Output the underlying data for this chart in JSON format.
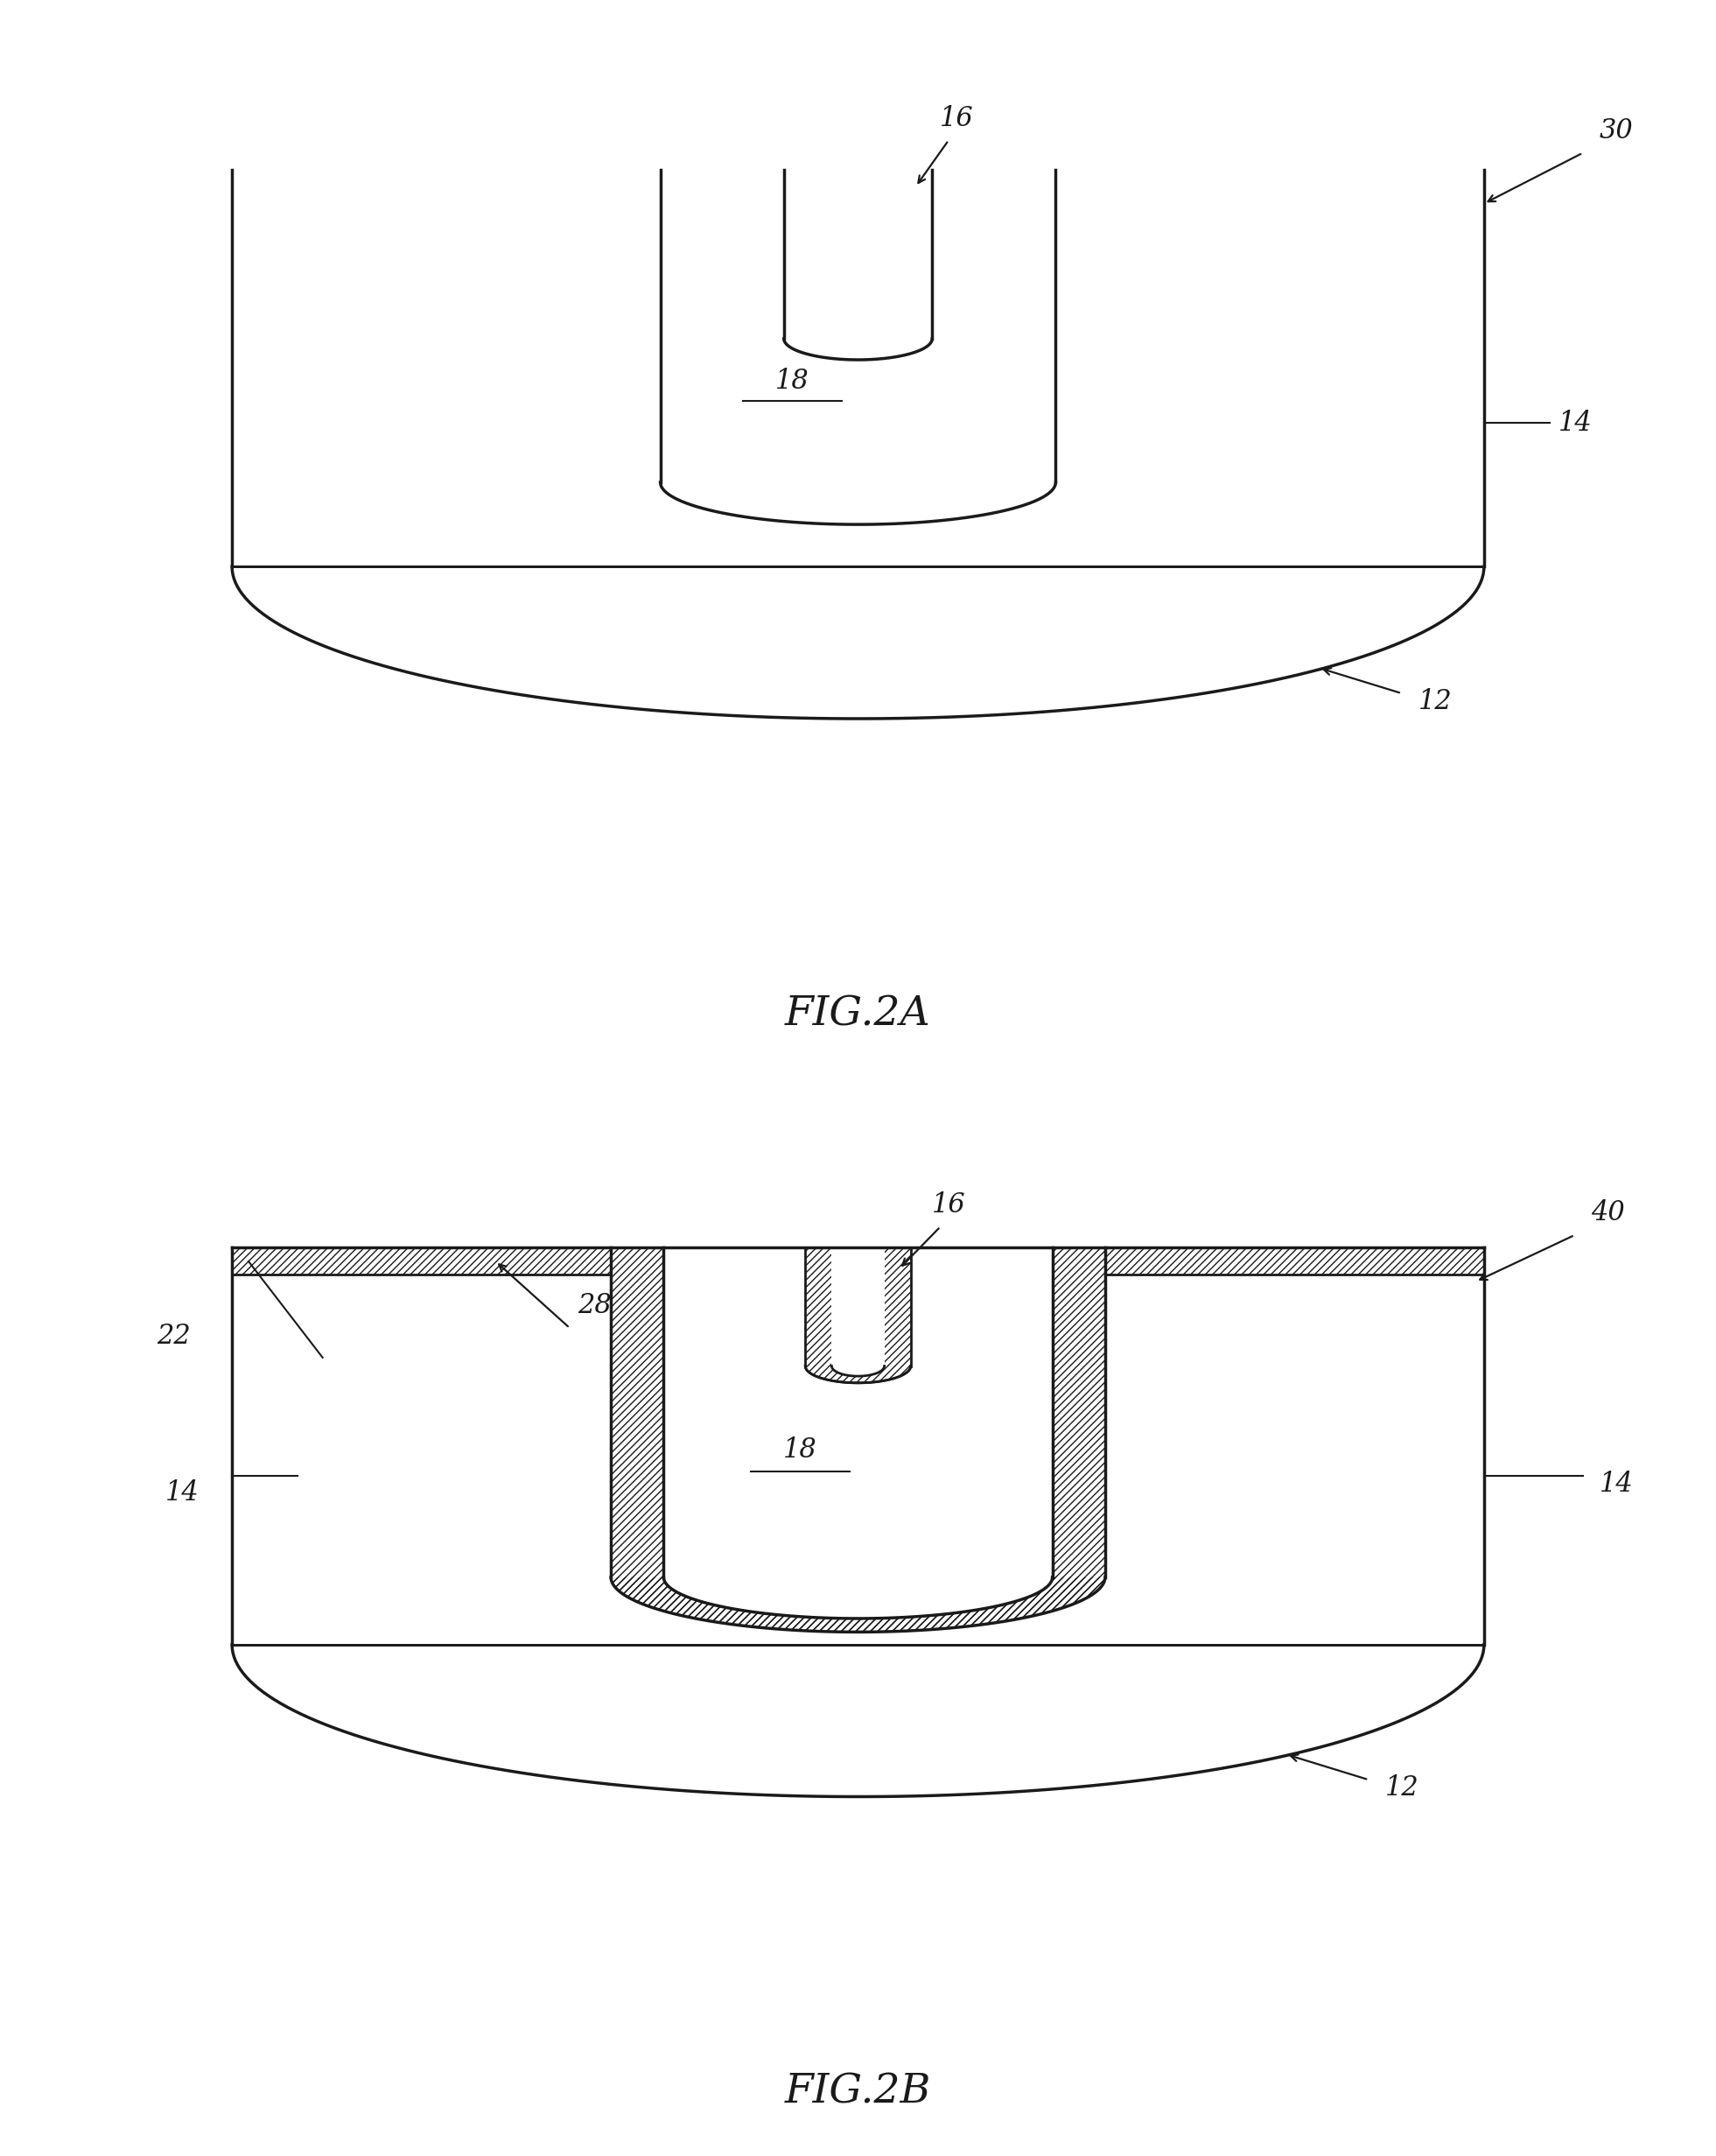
{
  "fig_width": 19.61,
  "fig_height": 24.63,
  "background_color": "#ffffff",
  "line_color": "#1a1a1a",
  "line_width": 2.5,
  "fig2a_label": "FIG.2A",
  "fig2b_label": "FIG.2B",
  "anno_fontsize": 22,
  "fig_label_fontsize": 34
}
